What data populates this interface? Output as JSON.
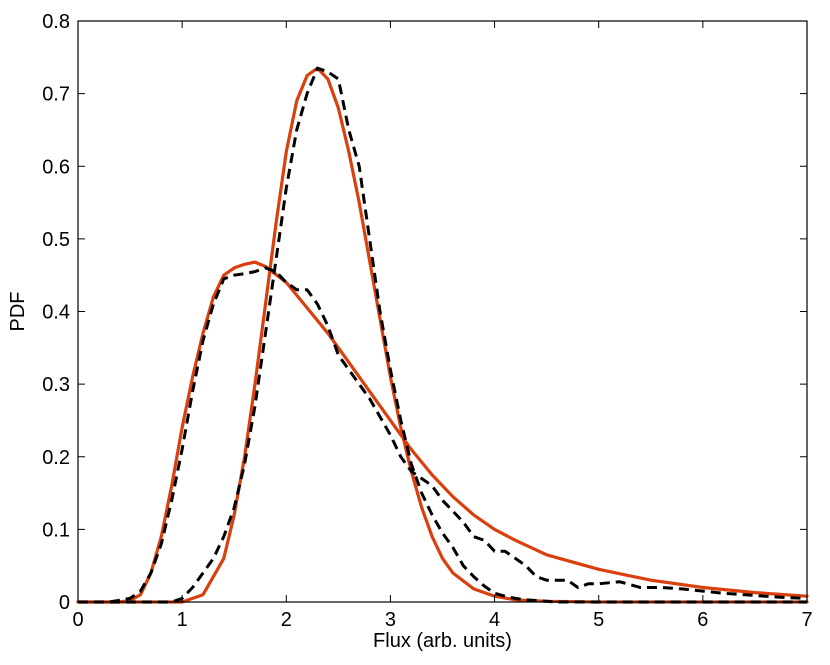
{
  "chart_data": {
    "type": "line",
    "title": "",
    "xlabel": "Flux (arb. units)",
    "ylabel": "PDF",
    "xlim": [
      0,
      7
    ],
    "ylim": [
      0,
      0.8
    ],
    "xticks": [
      0,
      1,
      2,
      3,
      4,
      5,
      6,
      7
    ],
    "yticks": [
      0,
      0.1,
      0.2,
      0.3,
      0.4,
      0.5,
      0.6,
      0.7,
      0.8
    ],
    "xtick_labels": [
      "0",
      "1",
      "2",
      "3",
      "4",
      "5",
      "6",
      "7"
    ],
    "ytick_labels": [
      "0",
      "0.1",
      "0.2",
      "0.3",
      "0.4",
      "0.5",
      "0.6",
      "0.7",
      "0.8"
    ],
    "grid": false,
    "legend": "none",
    "series": [
      {
        "color": "#d9400e",
        "line_style": "solid",
        "x": [
          0,
          0.4,
          0.5,
          0.6,
          0.7,
          0.8,
          0.9,
          1.0,
          1.1,
          1.2,
          1.3,
          1.4,
          1.5,
          1.6,
          1.7,
          1.8,
          2.0,
          2.2,
          2.4,
          2.6,
          2.8,
          3.0,
          3.2,
          3.4,
          3.6,
          3.8,
          4.0,
          4.2,
          4.5,
          5.0,
          5.5,
          6.0,
          6.5,
          7.0
        ],
        "y": [
          0,
          0,
          0.002,
          0.01,
          0.04,
          0.09,
          0.16,
          0.24,
          0.31,
          0.37,
          0.42,
          0.45,
          0.46,
          0.465,
          0.468,
          0.462,
          0.44,
          0.405,
          0.37,
          0.33,
          0.29,
          0.25,
          0.21,
          0.175,
          0.145,
          0.12,
          0.1,
          0.085,
          0.065,
          0.045,
          0.03,
          0.02,
          0.013,
          0.008
        ]
      },
      {
        "color": "#d9400e",
        "line_style": "solid",
        "x": [
          0,
          1.0,
          1.2,
          1.4,
          1.5,
          1.6,
          1.7,
          1.8,
          1.9,
          2.0,
          2.1,
          2.2,
          2.3,
          2.4,
          2.5,
          2.6,
          2.7,
          2.8,
          2.9,
          3.0,
          3.1,
          3.2,
          3.3,
          3.4,
          3.5,
          3.6,
          3.8,
          4.0,
          4.2,
          4.5,
          5.0,
          7.0
        ],
        "y": [
          0,
          0,
          0.01,
          0.06,
          0.12,
          0.2,
          0.3,
          0.41,
          0.52,
          0.62,
          0.69,
          0.725,
          0.735,
          0.72,
          0.68,
          0.62,
          0.55,
          0.47,
          0.39,
          0.31,
          0.24,
          0.18,
          0.13,
          0.09,
          0.06,
          0.04,
          0.018,
          0.008,
          0.003,
          0.001,
          0,
          0
        ]
      },
      {
        "color": "#000000",
        "line_style": "dashed",
        "x": [
          0,
          0.3,
          0.5,
          0.6,
          0.7,
          0.8,
          0.9,
          1.0,
          1.1,
          1.2,
          1.3,
          1.4,
          1.5,
          1.6,
          1.7,
          1.8,
          1.9,
          2.0,
          2.1,
          2.2,
          2.3,
          2.4,
          2.5,
          2.6,
          2.7,
          2.8,
          2.9,
          3.0,
          3.1,
          3.2,
          3.3,
          3.4,
          3.5,
          3.6,
          3.7,
          3.8,
          3.9,
          4.0,
          4.1,
          4.2,
          4.3,
          4.4,
          4.5,
          4.6,
          4.7,
          4.8,
          4.9,
          5.0,
          5.2,
          5.4,
          5.6,
          5.8,
          6.0,
          6.2,
          6.4,
          6.6,
          6.8,
          7.0
        ],
        "y": [
          0,
          0,
          0.005,
          0.015,
          0.04,
          0.08,
          0.14,
          0.21,
          0.29,
          0.36,
          0.41,
          0.445,
          0.45,
          0.452,
          0.455,
          0.46,
          0.455,
          0.44,
          0.43,
          0.43,
          0.41,
          0.38,
          0.34,
          0.32,
          0.3,
          0.28,
          0.255,
          0.23,
          0.2,
          0.18,
          0.17,
          0.16,
          0.14,
          0.125,
          0.11,
          0.09,
          0.085,
          0.07,
          0.07,
          0.06,
          0.05,
          0.035,
          0.03,
          0.03,
          0.03,
          0.02,
          0.025,
          0.025,
          0.028,
          0.02,
          0.02,
          0.018,
          0.015,
          0.012,
          0.01,
          0.008,
          0.006,
          0.005
        ]
      },
      {
        "color": "#000000",
        "line_style": "dashed",
        "x": [
          0,
          0.9,
          1.0,
          1.1,
          1.2,
          1.3,
          1.4,
          1.5,
          1.6,
          1.7,
          1.8,
          1.9,
          2.0,
          2.1,
          2.2,
          2.3,
          2.4,
          2.5,
          2.6,
          2.7,
          2.8,
          2.9,
          3.0,
          3.1,
          3.2,
          3.3,
          3.4,
          3.5,
          3.6,
          3.7,
          3.8,
          3.9,
          4.0,
          4.1,
          4.2,
          4.3,
          4.4,
          4.5,
          4.6,
          4.8,
          5.0,
          7.0
        ],
        "y": [
          0,
          0,
          0.005,
          0.02,
          0.04,
          0.06,
          0.09,
          0.13,
          0.19,
          0.27,
          0.37,
          0.47,
          0.57,
          0.65,
          0.7,
          0.735,
          0.73,
          0.72,
          0.65,
          0.6,
          0.5,
          0.4,
          0.32,
          0.25,
          0.19,
          0.15,
          0.12,
          0.095,
          0.075,
          0.05,
          0.035,
          0.022,
          0.012,
          0.008,
          0.005,
          0.003,
          0.002,
          0.001,
          0,
          0,
          0,
          0
        ]
      }
    ]
  }
}
